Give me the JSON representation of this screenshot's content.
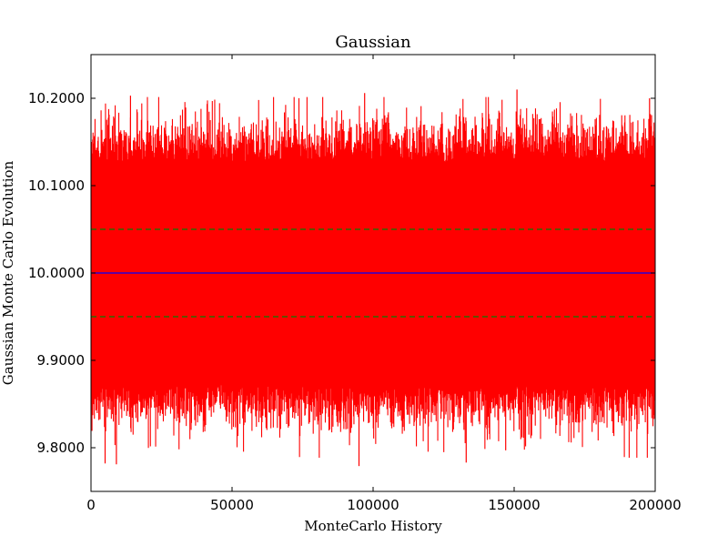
{
  "chart_data": {
    "type": "line",
    "title": "Gaussian",
    "xlabel": "MonteCarlo History",
    "ylabel": "Gaussian Monte Carlo Evolution",
    "xlim": [
      0,
      200000
    ],
    "ylim": [
      9.75,
      10.25
    ],
    "x_ticks": [
      0,
      50000,
      100000,
      150000,
      200000
    ],
    "x_tick_labels": [
      "0",
      "50000",
      "100000",
      "150000",
      "200000"
    ],
    "y_ticks": [
      9.8,
      9.9,
      10.0,
      10.1,
      10.2
    ],
    "y_tick_labels": [
      "9.8000",
      "9.9000",
      "10.0000",
      "10.1000",
      "10.2000"
    ],
    "grid": false,
    "legend": "none",
    "series": [
      {
        "style": "solid",
        "color": "#ff0000",
        "sample_count": 200000,
        "mean": 10.0,
        "std": 0.05,
        "observed_max": 10.21,
        "observed_min": 9.78,
        "extremes": [
          {
            "x": 14000,
            "y": 10.203
          },
          {
            "x": 97000,
            "y": 10.206
          },
          {
            "x": 151000,
            "y": 10.21
          },
          {
            "x": 198000,
            "y": 10.2
          },
          {
            "x": 5000,
            "y": 9.782
          },
          {
            "x": 9000,
            "y": 9.781
          },
          {
            "x": 95000,
            "y": 9.779
          },
          {
            "x": 133000,
            "y": 9.783
          },
          {
            "x": 147000,
            "y": 9.797
          }
        ]
      },
      {
        "style": "solid",
        "color": "#0000ff",
        "y": 10.0
      },
      {
        "style": "dashed",
        "color": "#008000",
        "y": 10.05
      },
      {
        "style": "dashed",
        "color": "#008000",
        "y": 9.95
      }
    ]
  }
}
